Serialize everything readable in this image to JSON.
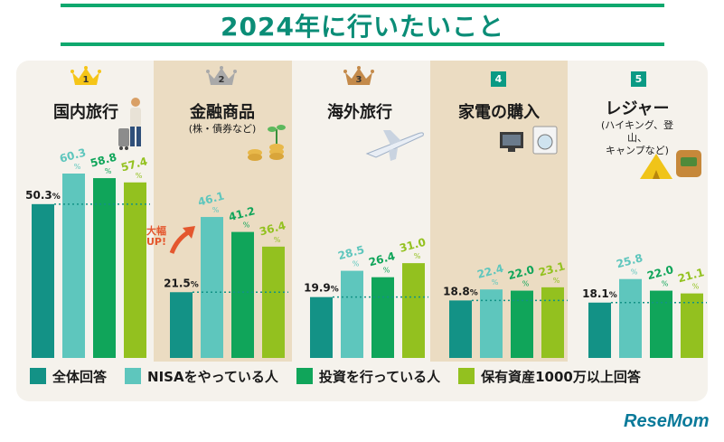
{
  "title": "2024年に行いたいこと",
  "colors": {
    "all": "#139286",
    "nisa": "#5ec6bd",
    "invest": "#10a55a",
    "asset": "#93c11f"
  },
  "categories": [
    {
      "rank": "1",
      "name": "国内旅行",
      "sub": ""
    },
    {
      "rank": "2",
      "name": "金融商品",
      "sub": "(株・債券など)"
    },
    {
      "rank": "3",
      "name": "海外旅行",
      "sub": ""
    },
    {
      "rank": "4",
      "name": "家電の購入",
      "sub": ""
    },
    {
      "rank": "5",
      "name": "レジャー",
      "sub": "(ハイキング、登山、\nキャンプなど)"
    }
  ],
  "annotation": "大幅\nUP!",
  "legend": [
    "全体回答",
    "NISAをやっている人",
    "投資を行っている人",
    "保有資産1000万以上回答"
  ],
  "logo": "ReseMom",
  "chart_data": {
    "type": "bar",
    "title": "2024年に行いたいこと",
    "categories": [
      "国内旅行",
      "金融商品",
      "海外旅行",
      "家電の購入",
      "レジャー"
    ],
    "series": [
      {
        "name": "全体回答",
        "values": [
          50.3,
          21.5,
          19.9,
          18.8,
          18.1
        ]
      },
      {
        "name": "NISAをやっている人",
        "values": [
          60.3,
          46.1,
          28.5,
          22.4,
          25.8
        ]
      },
      {
        "name": "投資を行っている人",
        "values": [
          58.8,
          41.2,
          26.4,
          22.0,
          22.0
        ]
      },
      {
        "name": "保有資産1000万以上回答",
        "values": [
          57.4,
          36.4,
          31.0,
          23.1,
          21.1
        ]
      }
    ],
    "unit": "%",
    "ylim": [
      0,
      60.3
    ],
    "legend_position": "bottom"
  }
}
